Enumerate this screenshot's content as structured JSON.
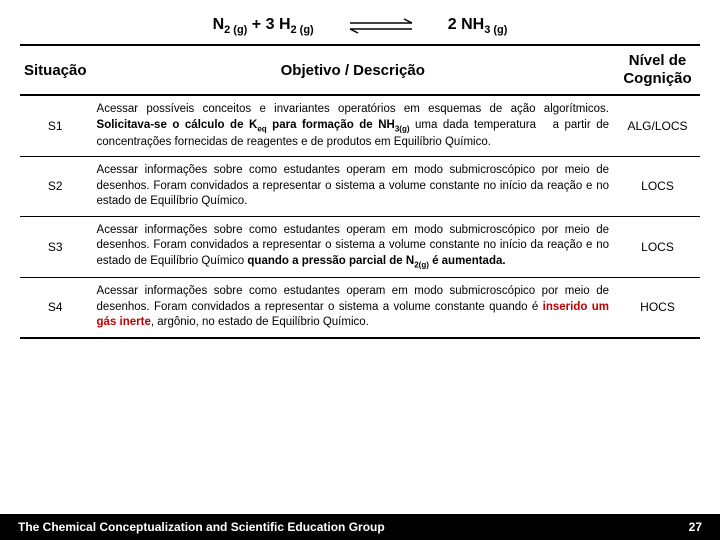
{
  "equation": {
    "lhs_html": "N<sub>2 (g)</sub> + 3 H<sub>2 (g)</sub>",
    "rhs_html": "2 NH<sub>3 (g)</sub>",
    "arrow_color": "#000000"
  },
  "table": {
    "headers": {
      "situacao": "Situação",
      "objetivo": "Objetivo / Descrição",
      "nivel": "Nível de Cognição"
    },
    "rows": [
      {
        "sit": "S1",
        "desc_html": "Acessar possíveis conceitos e invariantes operatórios em esquemas de ação algorítmicos. <b>Solicitava-se o cálculo de K<sub>eq</sub> para formação de NH<sub>3(g)</sub></b> uma dada temperatura &nbsp; a partir de concentrações fornecidas de reagentes e de produtos em Equilíbrio Químico.",
        "cog": "ALG/LOCS"
      },
      {
        "sit": "S2",
        "desc_html": "Acessar informações sobre como estudantes operam em modo submicroscópico por meio de desenhos. Foram convidados a representar o sistema a volume constante no início da reação e no estado de Equilíbrio Químico.",
        "cog": "LOCS"
      },
      {
        "sit": "S3",
        "desc_html": "Acessar informações sobre como estudantes operam em modo submicroscópico por meio de desenhos. Foram convidados a representar o sistema a volume constante no início da reação e no estado de Equilíbrio Químico <b>quando a pressão parcial de N<sub>2(g)</sub> é aumentada.</b>",
        "cog": "LOCS"
      },
      {
        "sit": "S4",
        "desc_html": "Acessar informações sobre como estudantes operam em modo submicroscópico por meio de desenhos. Foram convidados a representar o sistema a volume constante quando é <span class=\"red\">inserido um gás inerte</span>, argônio, no estado de Equilíbrio Químico.",
        "cog": "HOCS"
      }
    ]
  },
  "footer": {
    "group": "The Chemical Conceptualization and Scientific Education Group",
    "page": "27"
  },
  "colors": {
    "background": "#ffffff",
    "text": "#000000",
    "footer_bg": "#000000",
    "footer_text": "#ffffff",
    "accent_red": "#c00000"
  }
}
